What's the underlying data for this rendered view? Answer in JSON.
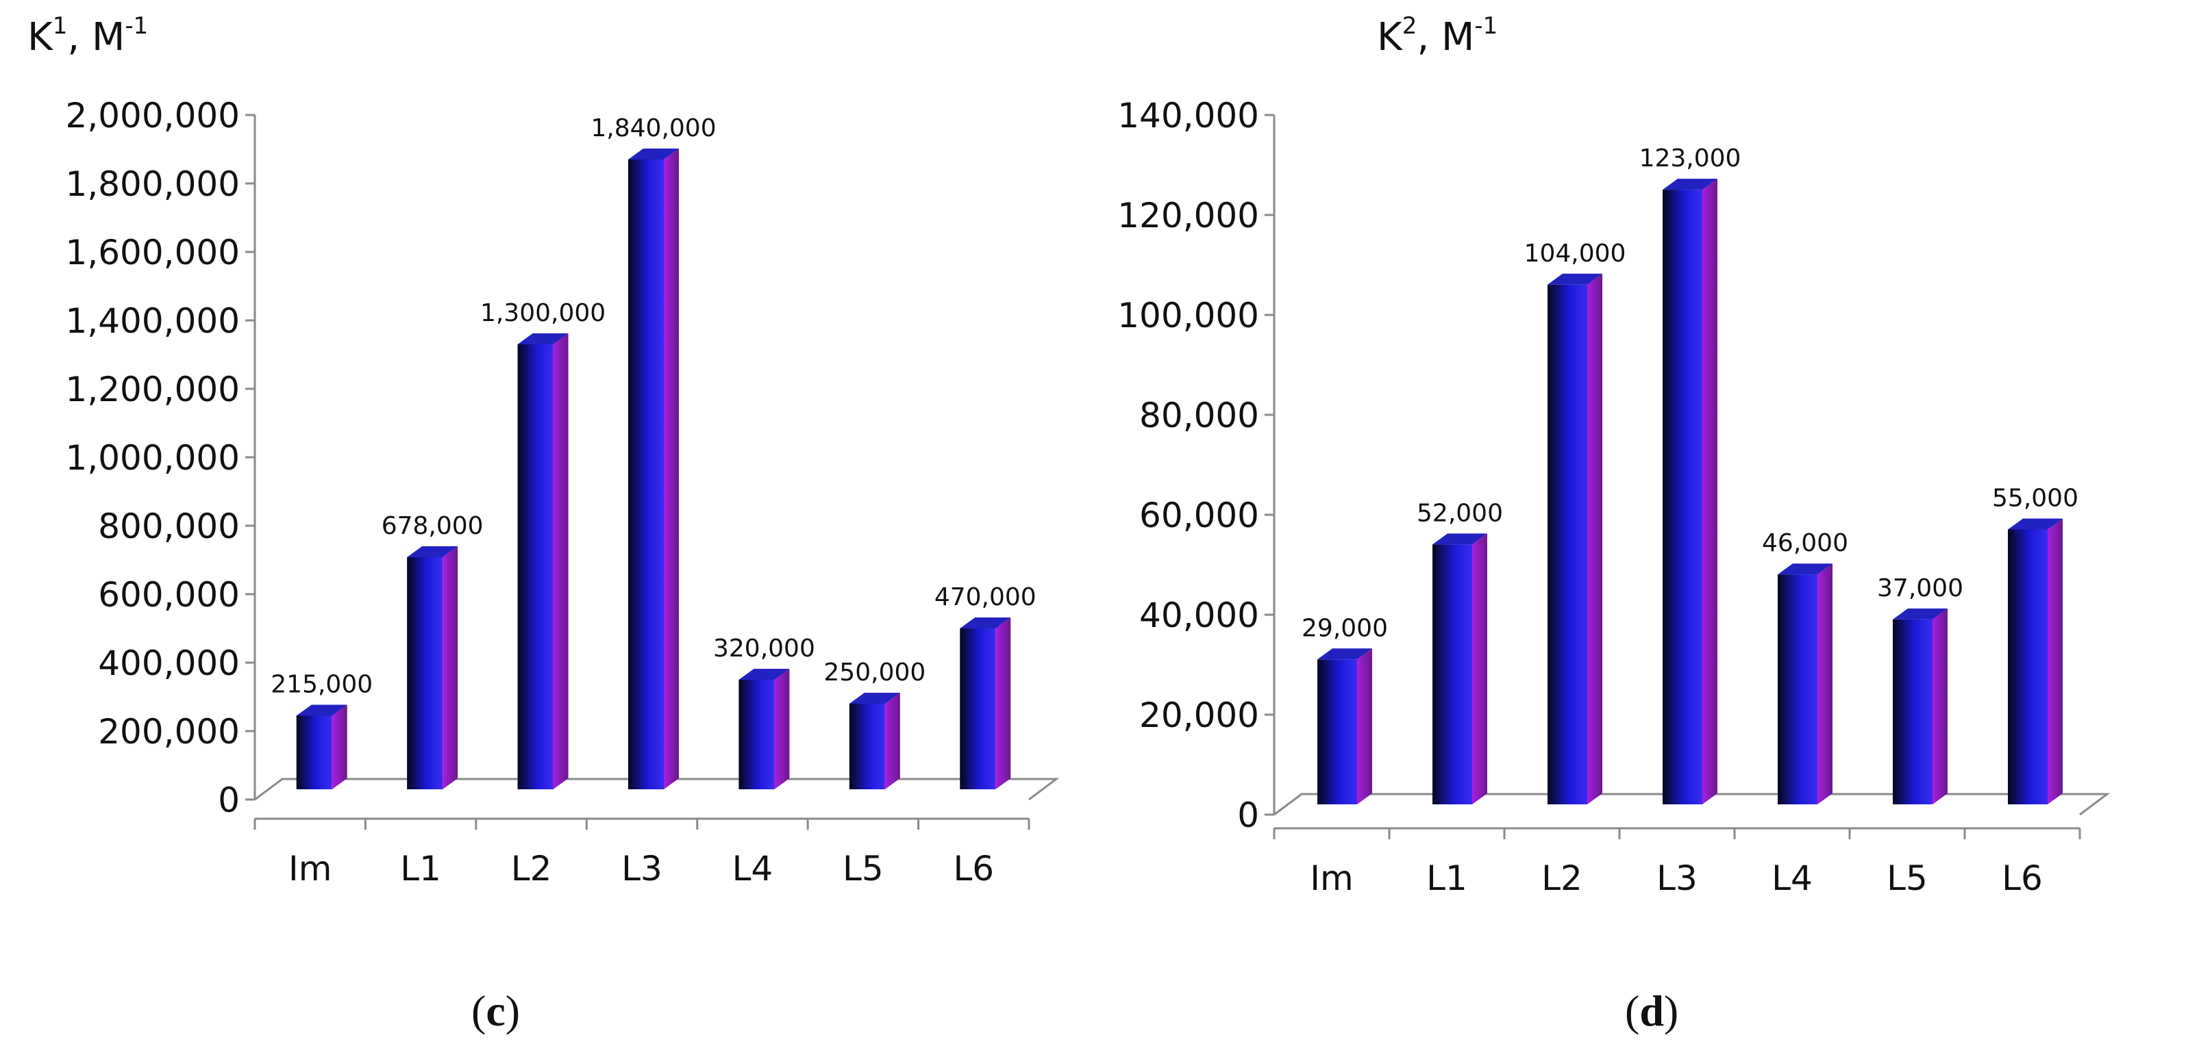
{
  "chart_data": [
    {
      "type": "bar",
      "panel_label": "c",
      "ylabel": {
        "base": "K",
        "sup": "1",
        "unit": "M",
        "unit_sup": "-1"
      },
      "categories": [
        "Im",
        "L1",
        "L2",
        "L3",
        "L4",
        "L5",
        "L6"
      ],
      "values": [
        215000,
        678000,
        1300000,
        1840000,
        320000,
        250000,
        470000
      ],
      "data_labels": [
        "215,000",
        "678,000",
        "1,300,000",
        "1,840,000",
        "320,000",
        "250,000",
        "470,000"
      ],
      "ylim": [
        0,
        2000000
      ],
      "yticks": [
        0,
        200000,
        400000,
        600000,
        800000,
        1000000,
        1200000,
        1400000,
        1600000,
        1800000,
        2000000
      ],
      "ytick_labels": [
        "0",
        "200,000",
        "400,000",
        "600,000",
        "800,000",
        "1,000,000",
        "1,200,000",
        "1,400,000",
        "1,600,000",
        "1,800,000",
        "2,000,000"
      ],
      "grid": false,
      "legend": "none"
    },
    {
      "type": "bar",
      "panel_label": "d",
      "ylabel": {
        "base": "K",
        "sup": "2",
        "unit": "M",
        "unit_sup": "-1"
      },
      "categories": [
        "Im",
        "L1",
        "L2",
        "L3",
        "L4",
        "L5",
        "L6"
      ],
      "values": [
        29000,
        52000,
        104000,
        123000,
        46000,
        37000,
        55000
      ],
      "data_labels": [
        "29,000",
        "52,000",
        "104,000",
        "123,000",
        "46,000",
        "37,000",
        "55,000"
      ],
      "ylim": [
        0,
        140000
      ],
      "yticks": [
        0,
        20000,
        40000,
        60000,
        80000,
        100000,
        120000,
        140000
      ],
      "ytick_labels": [
        "0",
        "20,000",
        "40,000",
        "60,000",
        "80,000",
        "100,000",
        "120,000",
        "140,000"
      ],
      "grid": false,
      "legend": "none"
    }
  ],
  "colors": {
    "bar_front_dark": "#06061e",
    "bar_front_mid": "#1a1ad8",
    "bar_front_light": "#3a2cf0",
    "bar_side": "#a81ee0",
    "bar_side_dark": "#6a1a8a",
    "bar_top": "#2222c0",
    "floor_line": "#8a8a8a",
    "axis_line": "#8a8a8a"
  }
}
